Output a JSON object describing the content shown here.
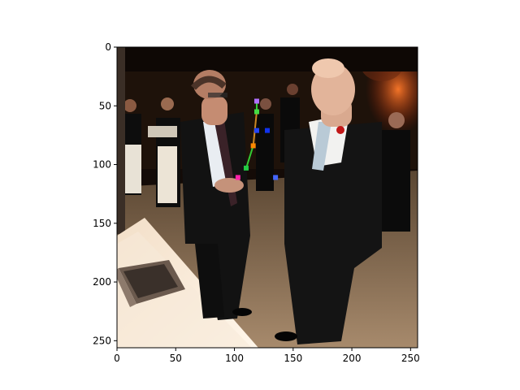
{
  "chart_data": {
    "type": "image",
    "title": "",
    "xlabel": "",
    "ylabel": "",
    "xlim": [
      0,
      256
    ],
    "ylim": [
      256,
      0
    ],
    "x_ticks": [
      0,
      50,
      100,
      150,
      200,
      250
    ],
    "y_ticks": [
      0,
      50,
      100,
      150,
      200,
      250
    ],
    "grid": false,
    "image_content": "photo",
    "keypoints": [
      {
        "x": 119,
        "y": 46,
        "color": "#b070ff"
      },
      {
        "x": 119,
        "y": 55,
        "color": "#44dd44"
      },
      {
        "x": 119,
        "y": 71,
        "color": "#2244ff"
      },
      {
        "x": 128,
        "y": 71,
        "color": "#1133ee"
      },
      {
        "x": 116,
        "y": 84,
        "color": "#ff8800"
      },
      {
        "x": 110,
        "y": 103,
        "color": "#22cc44"
      },
      {
        "x": 103,
        "y": 111,
        "color": "#ff22aa"
      },
      {
        "x": 135,
        "y": 111,
        "color": "#4466ff"
      }
    ],
    "skeleton": [
      {
        "from": 0,
        "to": 1,
        "color": "#33cc33"
      },
      {
        "from": 1,
        "to": 4,
        "color": "#cc8822"
      },
      {
        "from": 4,
        "to": 5,
        "color": "#33cc33"
      }
    ]
  }
}
